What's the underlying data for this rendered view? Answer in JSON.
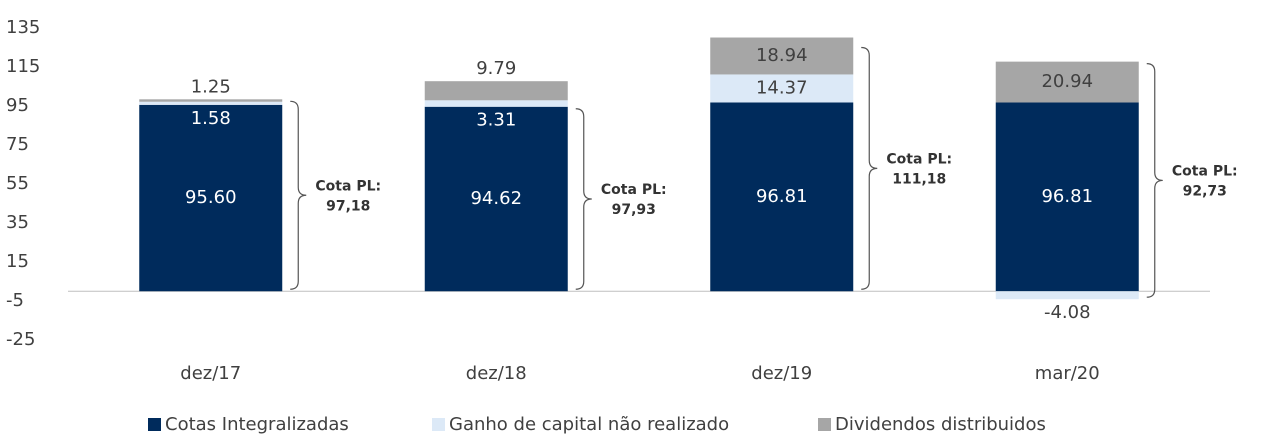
{
  "chart_data": {
    "type": "stacked_bar",
    "categories": [
      "dez/17",
      "dez/18",
      "dez/19",
      "mar/20"
    ],
    "series": [
      {
        "name": "Cotas Integralizadas",
        "color": "#002b5c",
        "values": [
          95.6,
          94.62,
          96.81,
          96.81
        ],
        "value_labels": [
          "95.60",
          "94.62",
          "96.81",
          "96.81"
        ]
      },
      {
        "name": "Ganho de capital não realizado",
        "color": "#dce9f7",
        "values": [
          1.58,
          3.31,
          14.37,
          -4.08
        ]
      },
      {
        "name": "Dividendos distribuidos",
        "color": "#a6a6a6",
        "values": [
          1.25,
          9.79,
          18.94,
          20.94
        ]
      }
    ],
    "ylim": [
      -25,
      135
    ],
    "yticks": [
      -25,
      -5,
      15,
      35,
      55,
      75,
      95,
      115,
      135
    ],
    "annotations": [
      {
        "lines": [
          "Cota PL:",
          "97,18"
        ]
      },
      {
        "lines": [
          "Cota PL:",
          "97,93"
        ]
      },
      {
        "lines": [
          "Cota PL:",
          "111,18"
        ]
      },
      {
        "lines": [
          "Cota PL:",
          "92,73"
        ]
      }
    ],
    "legend": "bottom"
  }
}
